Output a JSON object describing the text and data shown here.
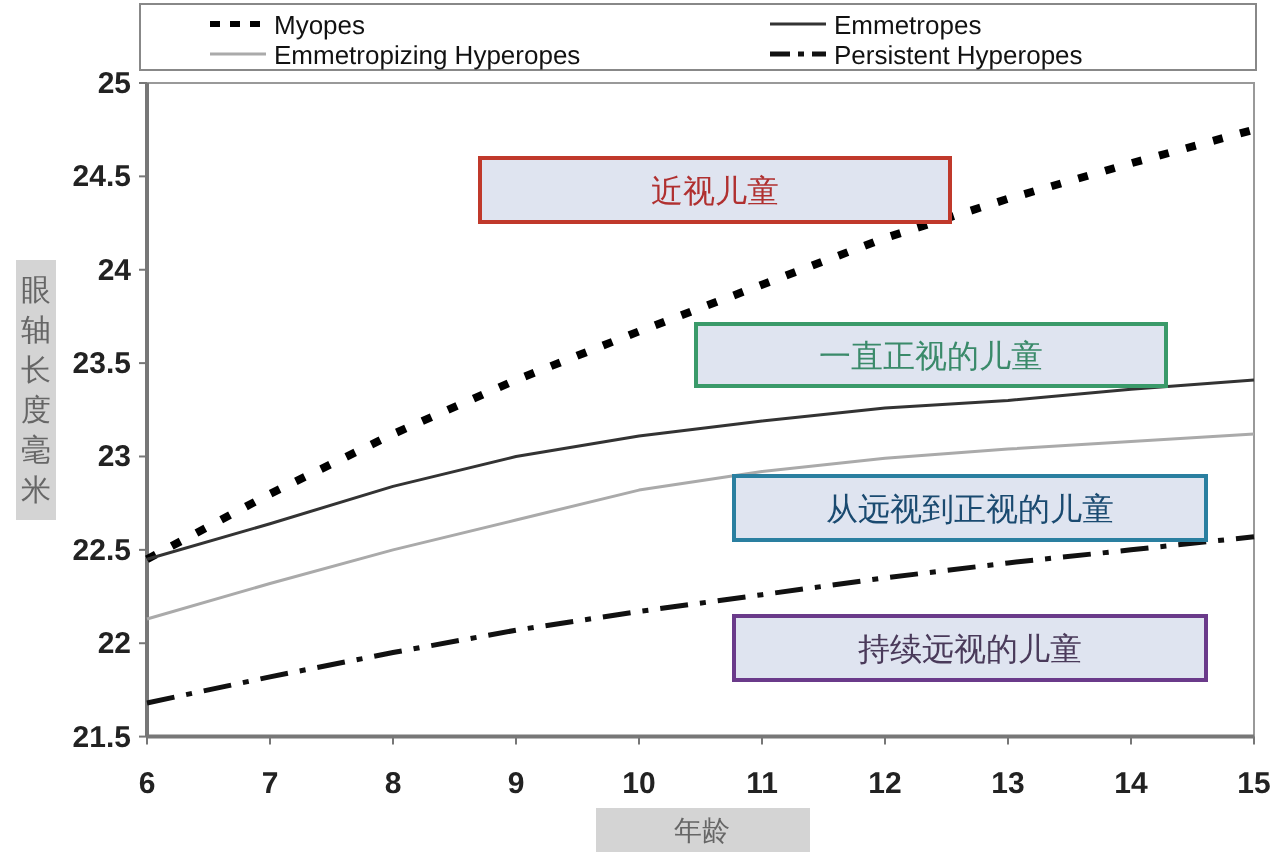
{
  "chart_data": {
    "type": "line",
    "x": [
      6,
      7,
      8,
      9,
      10,
      11,
      12,
      13,
      14,
      15
    ],
    "xlabel": "年龄",
    "ylabel": "眼轴长度毫米",
    "xlim": [
      6,
      15
    ],
    "xticks": [
      6,
      7,
      8,
      9,
      10,
      11,
      12,
      13,
      14,
      15
    ],
    "ylim": [
      21.5,
      25
    ],
    "yticks": [
      21.5,
      22,
      22.5,
      23,
      23.5,
      24,
      24.5,
      25
    ],
    "legend": "top",
    "grid": false,
    "marker": "none",
    "series": [
      {
        "name": "Myopes",
        "color": "#000000",
        "line_style": "dotted",
        "values": [
          22.45,
          22.8,
          23.12,
          23.41,
          23.67,
          23.92,
          24.17,
          24.38,
          24.57,
          24.75
        ]
      },
      {
        "name": "Emmetropes",
        "color": "#333333",
        "line_style": "solid",
        "values": [
          22.45,
          22.64,
          22.84,
          23.0,
          23.11,
          23.19,
          23.26,
          23.3,
          23.36,
          23.41
        ]
      },
      {
        "name": "Emmetropizing Hyperopes",
        "color": "#aaaaaa",
        "line_style": "solid",
        "values": [
          22.13,
          22.32,
          22.5,
          22.66,
          22.82,
          22.92,
          22.99,
          23.04,
          23.08,
          23.12
        ]
      },
      {
        "name": "Persistent Hyperopes",
        "color": "#111111",
        "line_style": "dashdot",
        "values": [
          21.68,
          21.82,
          21.95,
          22.07,
          22.17,
          22.26,
          22.35,
          22.43,
          22.5,
          22.57
        ]
      }
    ],
    "annotations": [
      "近视儿童",
      "一直正视的儿童",
      "从远视到正视的儿童",
      "持续远视的儿童"
    ]
  }
}
